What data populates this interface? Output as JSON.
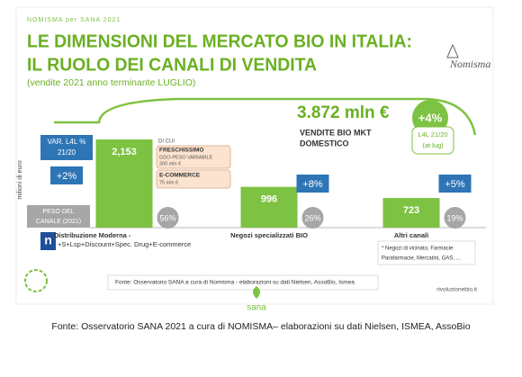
{
  "header": {
    "brand": "NOMISMA per SANA 2021",
    "title_lines": [
      "LE DIMENSIONI DEL MERCATO BIO IN ITALIA:",
      "IL RUOLO DEI CANALI DI VENDITA"
    ],
    "subtitle": "(vendite 2021 anno terminante LUGLIO)",
    "logo": "Nomisma"
  },
  "total": {
    "label": "3.872 mln €",
    "description_lines": [
      "VENDITE BIO MKT",
      "DOMESTICO"
    ],
    "growth": "+4%",
    "growth_note_lines": [
      "L4L 21/20",
      "(at lug)"
    ]
  },
  "chart_data": {
    "type": "bar",
    "y_label": "milioni di euro",
    "categories": [
      "Distribuzione Moderna -",
      "Negozi specializzati BIO",
      "Altri canali"
    ],
    "category_note": "+S+Lsp+Discount+Spec. Drug+E-commerce",
    "values": [
      2153,
      996,
      723
    ],
    "value_labels": [
      "2,153",
      "996",
      "723"
    ],
    "color": "#7dc242",
    "growth_title_lines": [
      "VAR. L4L %",
      "21/20"
    ],
    "growth_values": [
      2,
      8,
      5
    ],
    "growth_labels": [
      "+2%",
      "+8%",
      "+5%"
    ],
    "share_title_lines": [
      "PESO DEL",
      "CANALE (2021)"
    ],
    "share_values": [
      56,
      26,
      19
    ],
    "share_labels": [
      "56%",
      "26%",
      "19%"
    ],
    "breakdown": {
      "title": "DI CUI",
      "items": [
        {
          "lines": [
            "FRESCHISSIMO",
            "GDO-PESO VARIABILE",
            "300 mln €"
          ]
        },
        {
          "lines": [
            "E-COMMERCE",
            "75 mln €"
          ]
        }
      ]
    },
    "footnote_lines": [
      "* Negozi di vicinato, Farmacie",
      "Parafarmacie, Mercatini, GAS, ..."
    ]
  },
  "footer": {
    "source_box": "Fonte: Osservatorio SANA a cura di Nomisma - elaborazioni su dati Nielsen, AssoBio, Ismea",
    "sana_logo": "sana",
    "website": "rivoluzionebio.it",
    "caption": "Fonte: Osservatorio SANA 2021 a cura di NOMISMA– elaborazioni su dati Nielsen, ISMEA, AssoBio"
  }
}
